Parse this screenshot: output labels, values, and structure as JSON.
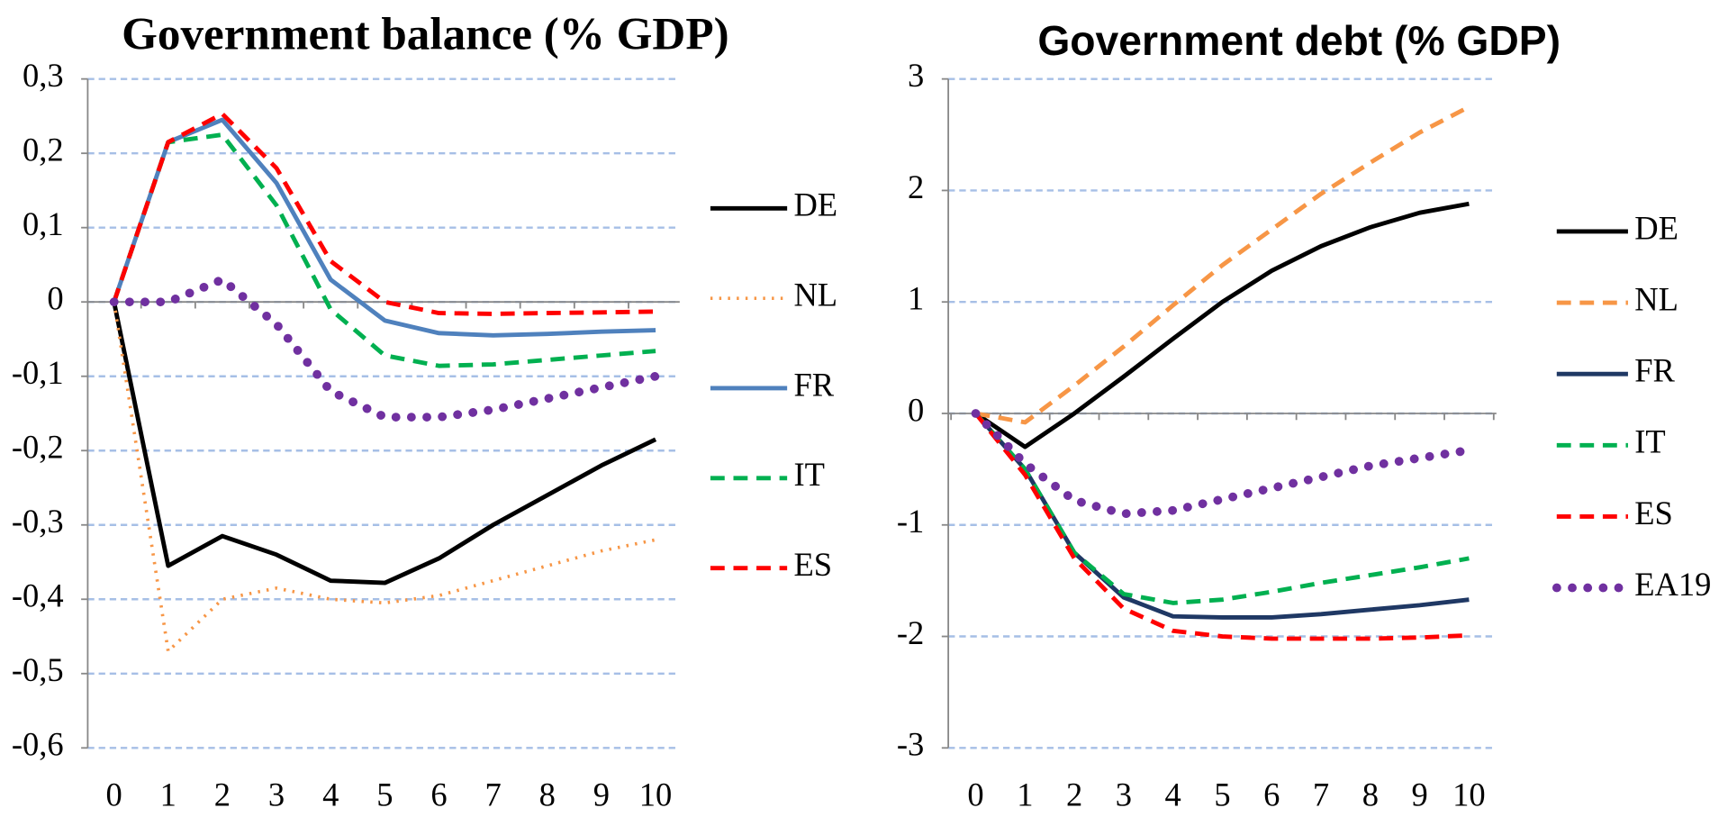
{
  "chart_data": [
    {
      "type": "line",
      "title": "Government balance (% GDP)",
      "categories": [
        "0",
        "1",
        "2",
        "3",
        "4",
        "5",
        "6",
        "7",
        "8",
        "9",
        "10"
      ],
      "ylim": [
        -0.6,
        0.3
      ],
      "yticks": [
        {
          "value": -0.6,
          "label": "-0,6"
        },
        {
          "value": -0.5,
          "label": "-0,5"
        },
        {
          "value": -0.4,
          "label": "-0,4"
        },
        {
          "value": -0.3,
          "label": "-0,3"
        },
        {
          "value": -0.2,
          "label": "-0,2"
        },
        {
          "value": -0.1,
          "label": "-0,1"
        },
        0,
        {
          "value": 0.1,
          "label": "0,1"
        },
        {
          "value": 0.2,
          "label": "0,2"
        },
        {
          "value": 0.3,
          "label": "0,3"
        }
      ],
      "grid": true,
      "legend": "right",
      "series": [
        {
          "name": "DE",
          "color": "#000000",
          "style": "solid",
          "values": [
            0,
            -0.355,
            -0.315,
            -0.34,
            -0.375,
            -0.378,
            -0.345,
            -0.3,
            -0.26,
            -0.22,
            -0.185
          ]
        },
        {
          "name": "NL",
          "color": "#f79646",
          "style": "dotted",
          "values": [
            0,
            -0.47,
            -0.4,
            -0.385,
            -0.4,
            -0.405,
            -0.395,
            -0.375,
            -0.355,
            -0.335,
            -0.32
          ]
        },
        {
          "name": "FR",
          "color": "#4f81bd",
          "style": "solid",
          "values": [
            0,
            0.215,
            0.245,
            0.16,
            0.03,
            -0.025,
            -0.042,
            -0.045,
            -0.043,
            -0.04,
            -0.038
          ]
        },
        {
          "name": "IT",
          "color": "#00b050",
          "style": "dashed",
          "values": [
            0,
            0.215,
            0.225,
            0.13,
            -0.01,
            -0.072,
            -0.086,
            -0.084,
            -0.078,
            -0.072,
            -0.066
          ]
        },
        {
          "name": "ES",
          "color": "#ff0000",
          "style": "dashed",
          "values": [
            0,
            0.215,
            0.253,
            0.18,
            0.055,
            0,
            -0.015,
            -0.016,
            -0.015,
            -0.014,
            -0.013
          ]
        },
        {
          "color": "#7030a0",
          "style": "round-dots",
          "values": [
            0,
            0,
            0.03,
            -0.03,
            -0.12,
            -0.155,
            -0.155,
            -0.145,
            -0.13,
            -0.115,
            -0.1
          ]
        }
      ]
    },
    {
      "type": "line",
      "title": "Government debt (% GDP)",
      "categories": [
        "0",
        "1",
        "2",
        "3",
        "4",
        "5",
        "6",
        "7",
        "8",
        "9",
        "10"
      ],
      "ylim": [
        -3,
        3
      ],
      "yticks": [
        -3,
        -2,
        -1,
        0,
        1,
        2,
        3
      ],
      "grid": true,
      "legend": "right",
      "series": [
        {
          "name": "DE",
          "color": "#000000",
          "style": "solid",
          "values": [
            0,
            -0.3,
            0,
            0.33,
            0.67,
            1.0,
            1.28,
            1.5,
            1.67,
            1.8,
            1.88
          ]
        },
        {
          "name": "NL",
          "color": "#f79646",
          "style": "dashed",
          "values": [
            0,
            -0.08,
            0.25,
            0.6,
            0.97,
            1.33,
            1.65,
            1.97,
            2.25,
            2.52,
            2.75
          ]
        },
        {
          "name": "FR",
          "color": "#1f3864",
          "style": "solid",
          "values": [
            0,
            -0.5,
            -1.25,
            -1.65,
            -1.82,
            -1.83,
            -1.83,
            -1.8,
            -1.76,
            -1.72,
            -1.67
          ]
        },
        {
          "name": "IT",
          "color": "#00b050",
          "style": "dashed",
          "values": [
            0,
            -0.5,
            -1.25,
            -1.62,
            -1.7,
            -1.67,
            -1.6,
            -1.52,
            -1.45,
            -1.38,
            -1.3
          ]
        },
        {
          "name": "ES",
          "color": "#ff0000",
          "style": "dashed",
          "values": [
            0,
            -0.55,
            -1.3,
            -1.75,
            -1.95,
            -2.0,
            -2.02,
            -2.02,
            -2.02,
            -2.01,
            -1.99
          ]
        },
        {
          "name": "EA19",
          "color": "#7030a0",
          "style": "round-dots",
          "values": [
            0,
            -0.45,
            -0.78,
            -0.9,
            -0.87,
            -0.77,
            -0.67,
            -0.57,
            -0.47,
            -0.4,
            -0.33
          ]
        }
      ]
    }
  ]
}
